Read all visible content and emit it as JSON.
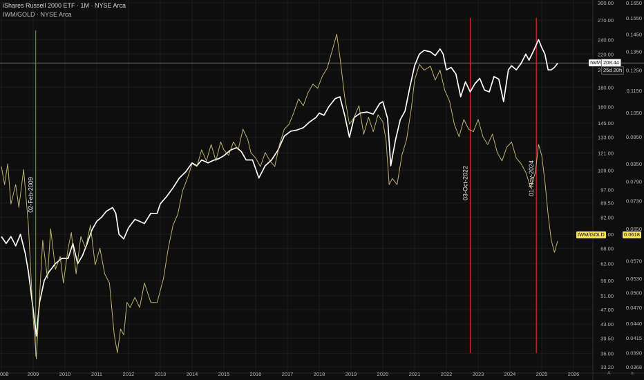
{
  "header": {
    "line1": "iShares Russell 2000 ETF · 1M · NYSE Arca",
    "line2": "IWM/GOLD · NYSE Arca"
  },
  "colors": {
    "background": "#0e0e0e",
    "iwm": "#ffffff",
    "ratio": "#cfc67a",
    "vline_green": "#2ea043",
    "vline_red": "#e0282e",
    "grid": "#1c1c1c"
  },
  "chart_data": {
    "type": "line",
    "x_ticks": [
      "008",
      "2009",
      "2010",
      "2011",
      "2012",
      "2013",
      "2014",
      "2015",
      "2016",
      "2017",
      "2018",
      "2019",
      "2020",
      "2021",
      "2022",
      "2023",
      "2024",
      "2025",
      "2026"
    ],
    "y_axis_left_ticks": [
      "300.00",
      "270.00",
      "240.00",
      "220.00",
      "200.00",
      "180.00",
      "160.00",
      "145.00",
      "133.00",
      "121.00",
      "109.00",
      "97.00",
      "89.50",
      "82.00",
      "74.00",
      "68.00",
      "62.00",
      "56.00",
      "51.00",
      "47.00",
      "43.00",
      "39.50",
      "36.00",
      "33.20"
    ],
    "y_axis_right_ticks": [
      "0.1650",
      "0.1550",
      "0.1450",
      "0.1350",
      "0.1250",
      "0.1150",
      "0.1050",
      "0.0950",
      "0.0850",
      "0.0790",
      "0.0730",
      "0.0650",
      "0.0570",
      "0.0530",
      "0.0500",
      "0.0470",
      "0.0440",
      "0.0415",
      "0.0390",
      "0.0368"
    ],
    "ylim_left": [
      33.2,
      300
    ],
    "ylim_right": [
      0.0368,
      0.165
    ],
    "scale": "log",
    "grid": true,
    "series": [
      {
        "name": "IWM",
        "color": "#ffffff",
        "values": [
          [
            2008.0,
            73
          ],
          [
            2008.15,
            70
          ],
          [
            2008.3,
            73
          ],
          [
            2008.45,
            69
          ],
          [
            2008.6,
            74
          ],
          [
            2008.75,
            66
          ],
          [
            2008.85,
            59
          ],
          [
            2009.0,
            47
          ],
          [
            2009.1,
            40
          ],
          [
            2009.2,
            49
          ],
          [
            2009.35,
            56
          ],
          [
            2009.5,
            59
          ],
          [
            2009.7,
            62
          ],
          [
            2009.9,
            64
          ],
          [
            2010.1,
            64
          ],
          [
            2010.25,
            70
          ],
          [
            2010.4,
            62
          ],
          [
            2010.55,
            65
          ],
          [
            2010.7,
            70
          ],
          [
            2010.85,
            76
          ],
          [
            2011.0,
            80
          ],
          [
            2011.15,
            82
          ],
          [
            2011.3,
            85
          ],
          [
            2011.5,
            87
          ],
          [
            2011.6,
            84
          ],
          [
            2011.7,
            74
          ],
          [
            2011.85,
            72
          ],
          [
            2012.0,
            77
          ],
          [
            2012.2,
            81
          ],
          [
            2012.35,
            80
          ],
          [
            2012.5,
            79
          ],
          [
            2012.7,
            84
          ],
          [
            2012.9,
            84
          ],
          [
            2013.0,
            89
          ],
          [
            2013.2,
            93
          ],
          [
            2013.4,
            98
          ],
          [
            2013.6,
            104
          ],
          [
            2013.8,
            108
          ],
          [
            2014.0,
            114
          ],
          [
            2014.15,
            112
          ],
          [
            2014.3,
            116
          ],
          [
            2014.5,
            114
          ],
          [
            2014.7,
            116
          ],
          [
            2014.85,
            117
          ],
          [
            2015.0,
            119
          ],
          [
            2015.2,
            123
          ],
          [
            2015.4,
            125
          ],
          [
            2015.55,
            122
          ],
          [
            2015.7,
            116
          ],
          [
            2015.9,
            116
          ],
          [
            2016.0,
            110
          ],
          [
            2016.1,
            104
          ],
          [
            2016.3,
            112
          ],
          [
            2016.5,
            116
          ],
          [
            2016.7,
            123
          ],
          [
            2016.9,
            134
          ],
          [
            2017.1,
            138
          ],
          [
            2017.3,
            139
          ],
          [
            2017.5,
            141
          ],
          [
            2017.7,
            146
          ],
          [
            2017.9,
            150
          ],
          [
            2018.0,
            154
          ],
          [
            2018.15,
            152
          ],
          [
            2018.3,
            160
          ],
          [
            2018.5,
            168
          ],
          [
            2018.65,
            170
          ],
          [
            2018.8,
            152
          ],
          [
            2018.95,
            133
          ],
          [
            2019.1,
            150
          ],
          [
            2019.3,
            154
          ],
          [
            2019.5,
            155
          ],
          [
            2019.7,
            153
          ],
          [
            2019.9,
            163
          ],
          [
            2020.0,
            165
          ],
          [
            2020.15,
            149
          ],
          [
            2020.25,
            112
          ],
          [
            2020.4,
            131
          ],
          [
            2020.55,
            148
          ],
          [
            2020.7,
            156
          ],
          [
            2020.85,
            180
          ],
          [
            2021.0,
            205
          ],
          [
            2021.15,
            220
          ],
          [
            2021.3,
            225
          ],
          [
            2021.5,
            223
          ],
          [
            2021.65,
            218
          ],
          [
            2021.8,
            227
          ],
          [
            2021.9,
            220
          ],
          [
            2022.0,
            200
          ],
          [
            2022.15,
            203
          ],
          [
            2022.3,
            195
          ],
          [
            2022.45,
            170
          ],
          [
            2022.6,
            186
          ],
          [
            2022.75,
            175
          ],
          [
            2022.9,
            184
          ],
          [
            2023.05,
            190
          ],
          [
            2023.2,
            177
          ],
          [
            2023.35,
            175
          ],
          [
            2023.5,
            192
          ],
          [
            2023.65,
            189
          ],
          [
            2023.8,
            165
          ],
          [
            2023.95,
            200
          ],
          [
            2024.05,
            205
          ],
          [
            2024.2,
            200
          ],
          [
            2024.35,
            208
          ],
          [
            2024.5,
            220
          ],
          [
            2024.6,
            212
          ],
          [
            2024.75,
            225
          ],
          [
            2024.9,
            240
          ],
          [
            2025.0,
            229
          ],
          [
            2025.1,
            220
          ],
          [
            2025.2,
            200
          ],
          [
            2025.3,
            200
          ],
          [
            2025.4,
            203
          ],
          [
            2025.5,
            208
          ]
        ]
      },
      {
        "name": "IWM/GOLD",
        "color": "#cfc67a",
        "values": [
          [
            2008.0,
            0.084
          ],
          [
            2008.1,
            0.078
          ],
          [
            2008.2,
            0.085
          ],
          [
            2008.3,
            0.072
          ],
          [
            2008.45,
            0.078
          ],
          [
            2008.55,
            0.071
          ],
          [
            2008.7,
            0.083
          ],
          [
            2008.85,
            0.066
          ],
          [
            2009.0,
            0.045
          ],
          [
            2009.1,
            0.038
          ],
          [
            2009.2,
            0.049
          ],
          [
            2009.3,
            0.062
          ],
          [
            2009.45,
            0.053
          ],
          [
            2009.55,
            0.065
          ],
          [
            2009.7,
            0.055
          ],
          [
            2009.85,
            0.058
          ],
          [
            2009.95,
            0.052
          ],
          [
            2010.1,
            0.06
          ],
          [
            2010.2,
            0.064
          ],
          [
            2010.35,
            0.054
          ],
          [
            2010.5,
            0.063
          ],
          [
            2010.65,
            0.06
          ],
          [
            2010.8,
            0.066
          ],
          [
            2010.95,
            0.056
          ],
          [
            2011.1,
            0.06
          ],
          [
            2011.25,
            0.054
          ],
          [
            2011.4,
            0.052
          ],
          [
            2011.55,
            0.042
          ],
          [
            2011.65,
            0.039
          ],
          [
            2011.75,
            0.043
          ],
          [
            2011.85,
            0.042
          ],
          [
            2011.95,
            0.048
          ],
          [
            2012.05,
            0.047
          ],
          [
            2012.2,
            0.049
          ],
          [
            2012.35,
            0.047
          ],
          [
            2012.5,
            0.052
          ],
          [
            2012.7,
            0.048
          ],
          [
            2012.9,
            0.048
          ],
          [
            2013.1,
            0.053
          ],
          [
            2013.25,
            0.06
          ],
          [
            2013.4,
            0.066
          ],
          [
            2013.55,
            0.069
          ],
          [
            2013.7,
            0.076
          ],
          [
            2013.85,
            0.08
          ],
          [
            2014.0,
            0.085
          ],
          [
            2014.15,
            0.084
          ],
          [
            2014.3,
            0.09
          ],
          [
            2014.45,
            0.086
          ],
          [
            2014.6,
            0.092
          ],
          [
            2014.75,
            0.086
          ],
          [
            2014.9,
            0.093
          ],
          [
            2015.0,
            0.09
          ],
          [
            2015.15,
            0.088
          ],
          [
            2015.3,
            0.093
          ],
          [
            2015.45,
            0.09
          ],
          [
            2015.6,
            0.098
          ],
          [
            2015.75,
            0.094
          ],
          [
            2015.85,
            0.089
          ],
          [
            2016.0,
            0.087
          ],
          [
            2016.15,
            0.084
          ],
          [
            2016.3,
            0.089
          ],
          [
            2016.45,
            0.086
          ],
          [
            2016.6,
            0.084
          ],
          [
            2016.75,
            0.092
          ],
          [
            2016.9,
            0.098
          ],
          [
            2017.05,
            0.1
          ],
          [
            2017.2,
            0.105
          ],
          [
            2017.35,
            0.111
          ],
          [
            2017.5,
            0.108
          ],
          [
            2017.65,
            0.114
          ],
          [
            2017.8,
            0.118
          ],
          [
            2017.95,
            0.116
          ],
          [
            2018.1,
            0.122
          ],
          [
            2018.25,
            0.126
          ],
          [
            2018.4,
            0.135
          ],
          [
            2018.55,
            0.145
          ],
          [
            2018.65,
            0.132
          ],
          [
            2018.8,
            0.112
          ],
          [
            2018.95,
            0.1
          ],
          [
            2019.1,
            0.103
          ],
          [
            2019.25,
            0.108
          ],
          [
            2019.4,
            0.096
          ],
          [
            2019.55,
            0.103
          ],
          [
            2019.7,
            0.097
          ],
          [
            2019.85,
            0.104
          ],
          [
            2020.0,
            0.101
          ],
          [
            2020.1,
            0.094
          ],
          [
            2020.2,
            0.078
          ],
          [
            2020.3,
            0.08
          ],
          [
            2020.45,
            0.078
          ],
          [
            2020.6,
            0.088
          ],
          [
            2020.75,
            0.094
          ],
          [
            2020.9,
            0.107
          ],
          [
            2021.0,
            0.12
          ],
          [
            2021.15,
            0.128
          ],
          [
            2021.3,
            0.125
          ],
          [
            2021.5,
            0.127
          ],
          [
            2021.65,
            0.12
          ],
          [
            2021.8,
            0.125
          ],
          [
            2021.95,
            0.115
          ],
          [
            2022.1,
            0.11
          ],
          [
            2022.25,
            0.1
          ],
          [
            2022.4,
            0.095
          ],
          [
            2022.55,
            0.102
          ],
          [
            2022.7,
            0.098
          ],
          [
            2022.85,
            0.097
          ],
          [
            2023.0,
            0.102
          ],
          [
            2023.15,
            0.095
          ],
          [
            2023.3,
            0.092
          ],
          [
            2023.45,
            0.096
          ],
          [
            2023.6,
            0.089
          ],
          [
            2023.75,
            0.086
          ],
          [
            2023.9,
            0.091
          ],
          [
            2024.05,
            0.093
          ],
          [
            2024.2,
            0.087
          ],
          [
            2024.35,
            0.085
          ],
          [
            2024.5,
            0.082
          ],
          [
            2024.65,
            0.077
          ],
          [
            2024.8,
            0.082
          ],
          [
            2024.9,
            0.092
          ],
          [
            2025.0,
            0.088
          ],
          [
            2025.1,
            0.079
          ],
          [
            2025.2,
            0.069
          ],
          [
            2025.3,
            0.062
          ],
          [
            2025.4,
            0.059
          ],
          [
            2025.5,
            0.0618
          ]
        ]
      }
    ],
    "vertical_markers": [
      {
        "date": "02-Feb-2009",
        "x": 2009.08,
        "color": "#2ea043"
      },
      {
        "date": "03-Oct-2022",
        "x": 2022.75,
        "color": "#e0282e"
      },
      {
        "date": "01-Nov-2024",
        "x": 2024.83,
        "color": "#e0282e"
      }
    ],
    "price_line": {
      "value": 208.44
    }
  },
  "labels": {
    "iwm_name": "IWM",
    "iwm_value": "208.44",
    "iwm_time": "25d 20h",
    "ratio_name": "IWM/GOLD",
    "ratio_value": "0.0618",
    "corner_a": "A",
    "corner_b": "a"
  }
}
